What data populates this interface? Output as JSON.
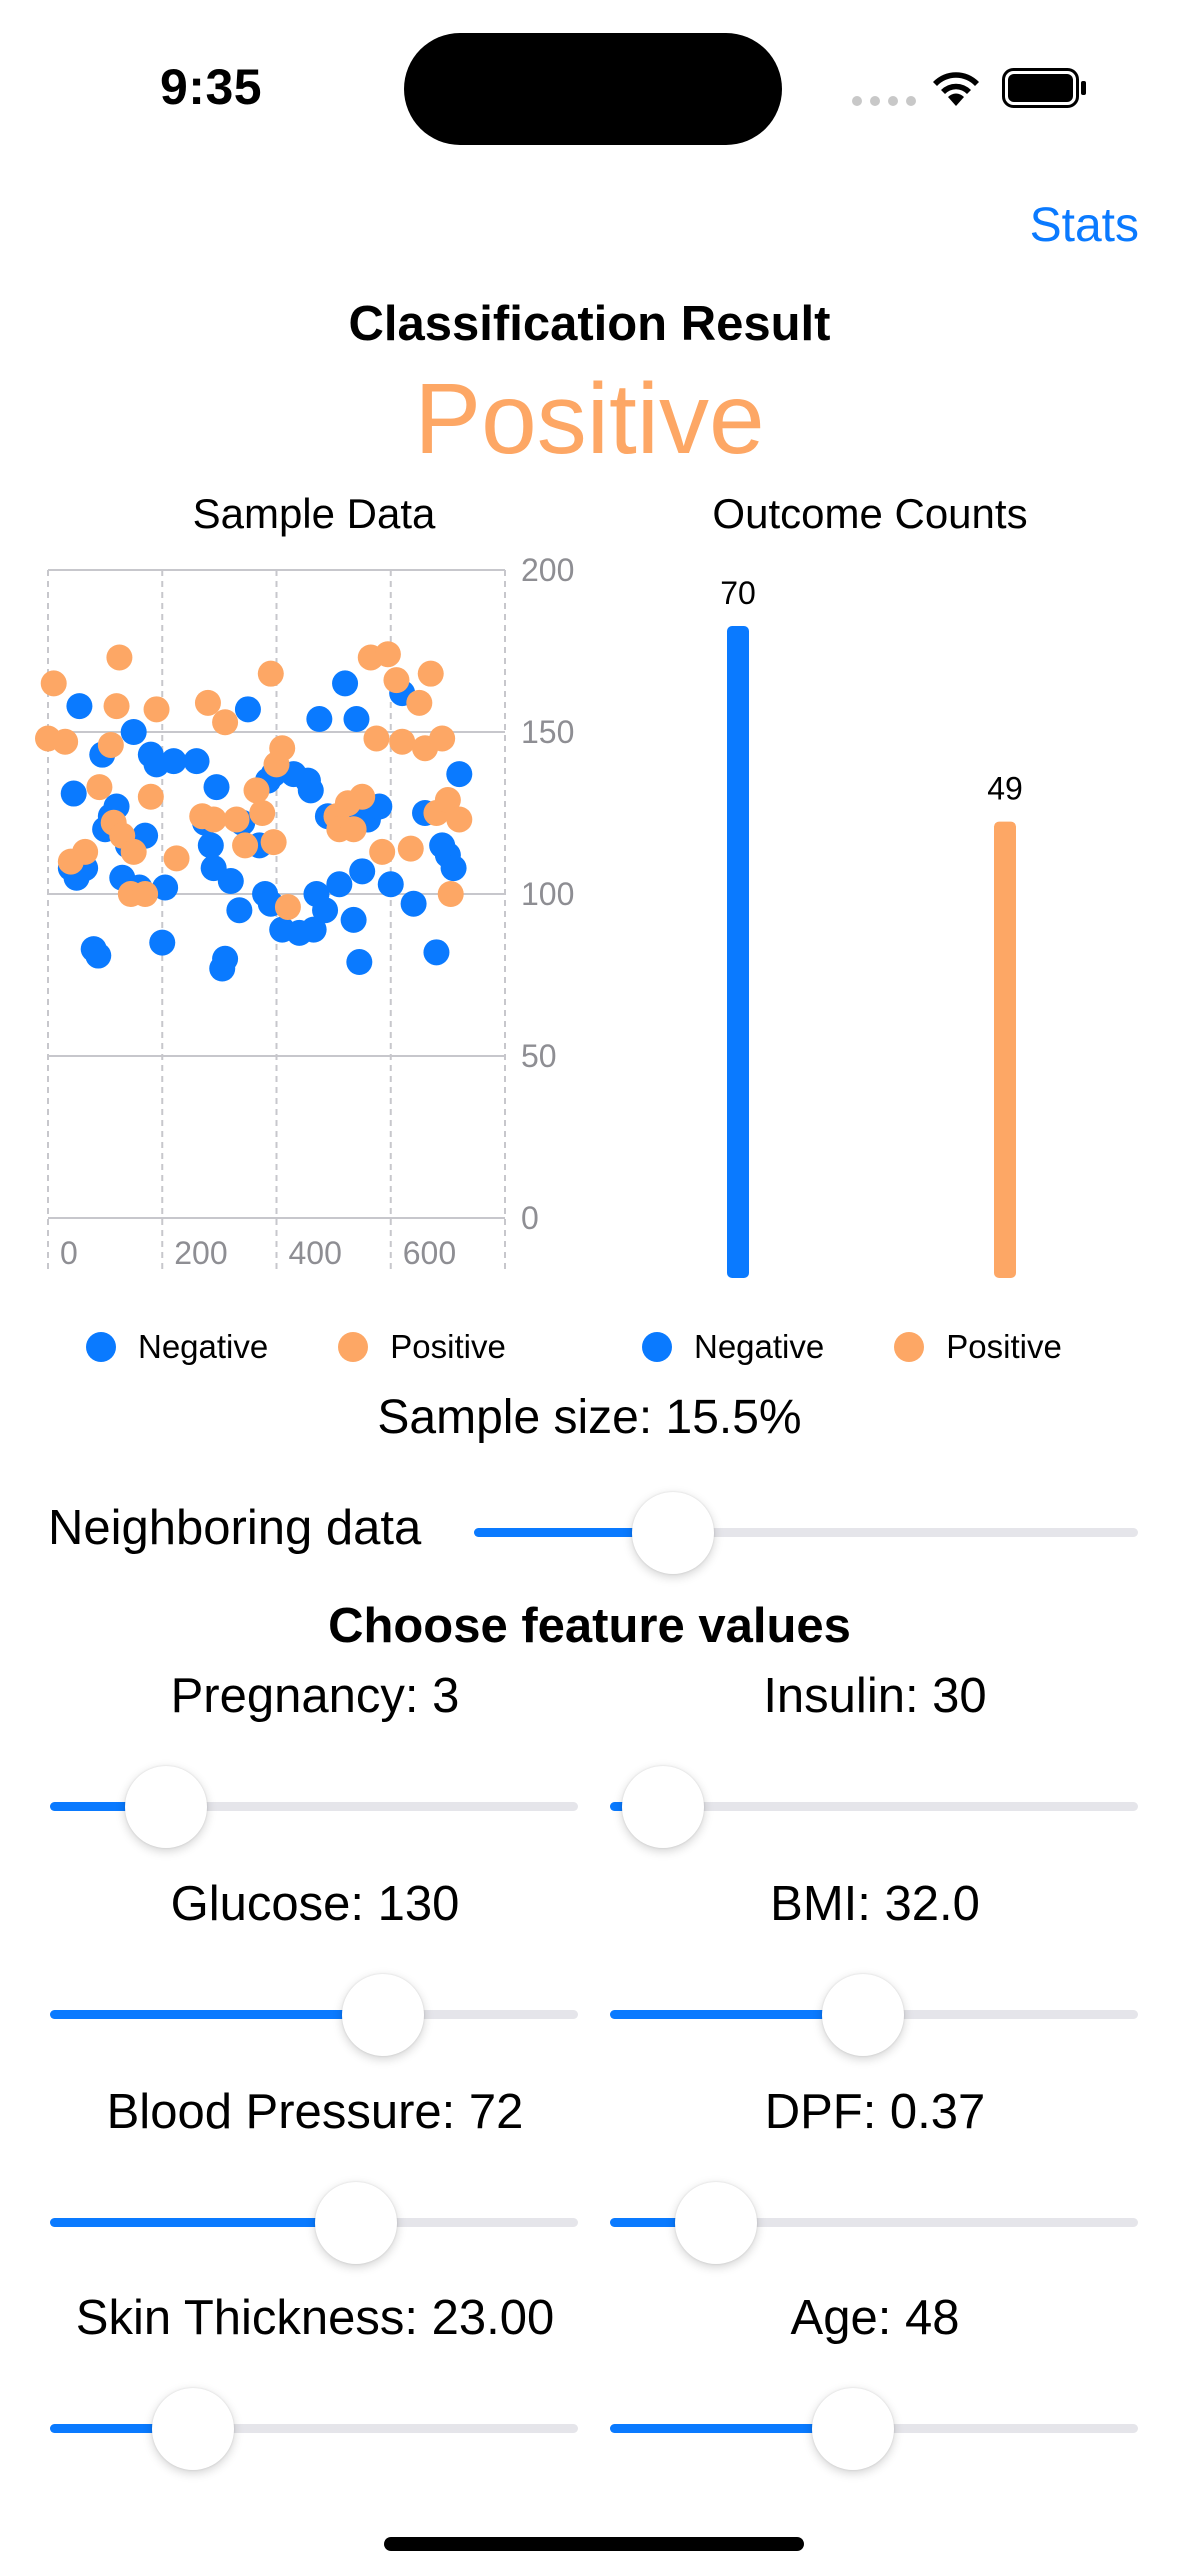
{
  "status_bar": {
    "time": "9:35"
  },
  "header": {
    "stats_label": "Stats",
    "result_title": "Classification Result",
    "result_value": "Positive"
  },
  "colors": {
    "negative": "#0a7aff",
    "positive": "#fda765",
    "accent": "#0a7aff"
  },
  "legend": {
    "negative": "Negative",
    "positive": "Positive"
  },
  "chart_data": [
    {
      "type": "scatter",
      "title": "Sample Data",
      "xlabel": "",
      "ylabel": "",
      "xlim": [
        0,
        800
      ],
      "ylim": [
        0,
        200
      ],
      "xticks": [
        0,
        200,
        400,
        600
      ],
      "yticks": [
        0,
        50,
        100,
        150,
        200
      ],
      "grid": true,
      "legend_position": "bottom",
      "series": [
        {
          "name": "Negative",
          "color": "#0a7aff",
          "points": [
            [
              40,
              108
            ],
            [
              45,
              131
            ],
            [
              50,
              105
            ],
            [
              55,
              158
            ],
            [
              65,
              108
            ],
            [
              80,
              83
            ],
            [
              88,
              81
            ],
            [
              95,
              143
            ],
            [
              100,
              120
            ],
            [
              110,
              124
            ],
            [
              120,
              127
            ],
            [
              130,
              105
            ],
            [
              140,
              115
            ],
            [
              150,
              150
            ],
            [
              160,
              102
            ],
            [
              170,
              118
            ],
            [
              180,
              143
            ],
            [
              190,
              140
            ],
            [
              200,
              85
            ],
            [
              205,
              102
            ],
            [
              220,
              141
            ],
            [
              260,
              141
            ],
            [
              275,
              122
            ],
            [
              285,
              115
            ],
            [
              290,
              108
            ],
            [
              295,
              133
            ],
            [
              305,
              77
            ],
            [
              310,
              80
            ],
            [
              320,
              104
            ],
            [
              335,
              95
            ],
            [
              340,
              122
            ],
            [
              350,
              157
            ],
            [
              370,
              115
            ],
            [
              380,
              100
            ],
            [
              385,
              135
            ],
            [
              390,
              97
            ],
            [
              395,
              137
            ],
            [
              410,
              89
            ],
            [
              430,
              137
            ],
            [
              440,
              88
            ],
            [
              455,
              135
            ],
            [
              460,
              132
            ],
            [
              465,
              89
            ],
            [
              470,
              100
            ],
            [
              475,
              154
            ],
            [
              485,
              95
            ],
            [
              490,
              124
            ],
            [
              510,
              103
            ],
            [
              520,
              165
            ],
            [
              530,
              125
            ],
            [
              535,
              92
            ],
            [
              540,
              154
            ],
            [
              545,
              79
            ],
            [
              550,
              107
            ],
            [
              560,
              123
            ],
            [
              580,
              127
            ],
            [
              600,
              103
            ],
            [
              620,
              162
            ],
            [
              640,
              97
            ],
            [
              660,
              125
            ],
            [
              680,
              82
            ],
            [
              690,
              115
            ],
            [
              700,
              112
            ],
            [
              710,
              108
            ],
            [
              720,
              137
            ]
          ]
        },
        {
          "name": "Positive",
          "color": "#fda765",
          "points": [
            [
              0,
              148
            ],
            [
              10,
              165
            ],
            [
              30,
              147
            ],
            [
              40,
              110
            ],
            [
              65,
              113
            ],
            [
              90,
              133
            ],
            [
              110,
              146
            ],
            [
              115,
              122
            ],
            [
              120,
              158
            ],
            [
              125,
              173
            ],
            [
              130,
              118
            ],
            [
              145,
              100
            ],
            [
              150,
              113
            ],
            [
              170,
              100
            ],
            [
              180,
              130
            ],
            [
              190,
              157
            ],
            [
              225,
              111
            ],
            [
              270,
              124
            ],
            [
              280,
              159
            ],
            [
              290,
              123
            ],
            [
              310,
              153
            ],
            [
              330,
              123
            ],
            [
              345,
              115
            ],
            [
              365,
              132
            ],
            [
              375,
              125
            ],
            [
              390,
              168
            ],
            [
              395,
              116
            ],
            [
              400,
              140
            ],
            [
              410,
              145
            ],
            [
              420,
              96
            ],
            [
              505,
              124
            ],
            [
              510,
              120
            ],
            [
              525,
              128
            ],
            [
              535,
              120
            ],
            [
              550,
              130
            ],
            [
              565,
              173
            ],
            [
              575,
              148
            ],
            [
              585,
              113
            ],
            [
              595,
              174
            ],
            [
              610,
              166
            ],
            [
              620,
              147
            ],
            [
              635,
              114
            ],
            [
              650,
              159
            ],
            [
              660,
              145
            ],
            [
              670,
              168
            ],
            [
              680,
              125
            ],
            [
              690,
              148
            ],
            [
              700,
              129
            ],
            [
              705,
              100
            ],
            [
              720,
              123
            ]
          ]
        }
      ]
    },
    {
      "type": "bar",
      "title": "Outcome Counts",
      "categories": [
        "Negative",
        "Positive"
      ],
      "values": [
        70,
        49
      ],
      "colors": [
        "#0a7aff",
        "#fda765"
      ],
      "ylim": [
        0,
        70
      ],
      "legend_position": "bottom"
    }
  ],
  "sample": {
    "size_text": "Sample size: 15.5%"
  },
  "neighboring": {
    "label": "Neighboring data",
    "value_fraction": 0.3
  },
  "features": {
    "title": "Choose feature values",
    "items": [
      {
        "label": "Pregnancy: 3",
        "fraction": 0.22
      },
      {
        "label": "Insulin: 30",
        "fraction": 0.1
      },
      {
        "label": "Glucose: 130",
        "fraction": 0.63
      },
      {
        "label": "BMI: 32.0",
        "fraction": 0.48
      },
      {
        "label": "Blood Pressure: 72",
        "fraction": 0.58
      },
      {
        "label": "DPF: 0.37",
        "fraction": 0.2
      },
      {
        "label": "Skin Thickness: 23.00",
        "fraction": 0.27
      },
      {
        "label": "Age: 48",
        "fraction": 0.46
      }
    ]
  }
}
